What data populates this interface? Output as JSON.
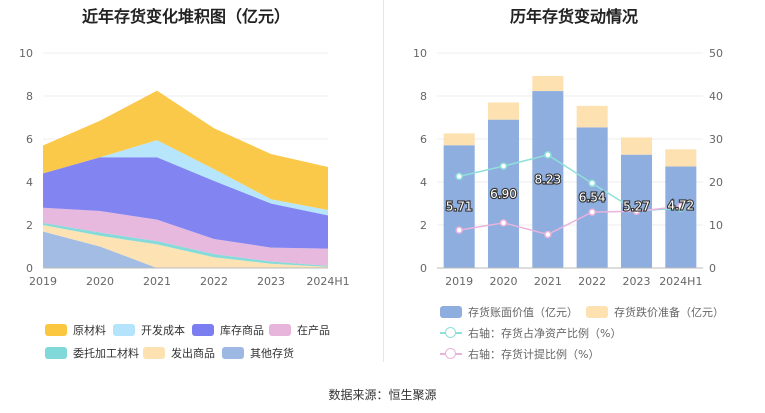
{
  "left_title": "近年存货变化堆积图（亿元）",
  "right_title": "历年存货变动情况",
  "source": "数据来源：恒生聚源",
  "colors": {
    "raw": "#fbc640",
    "dev": "#b3e4fb",
    "inventory": "#7b7ef0",
    "wip": "#e7b5dc",
    "consign": "#80d8d8",
    "shipped": "#fde1b0",
    "other": "#9db8e3",
    "bar_book": "#8eaedf",
    "bar_reserve": "#fde1b0",
    "line_assets": "#8fe0da",
    "line_reserve": "#e8b4dc"
  },
  "chart_data": [
    {
      "type": "area",
      "title": "近年存货变化堆积图（亿元）",
      "categories": [
        "2019",
        "2020",
        "2021",
        "2022",
        "2023",
        "2024H1"
      ],
      "ylim": [
        0,
        10
      ],
      "yticks": [
        0,
        2,
        4,
        6,
        8,
        10
      ],
      "stacked": true,
      "series": [
        {
          "name": "其他存货",
          "color_key": "other",
          "values": [
            1.7,
            1.0,
            0.0,
            0.0,
            0.0,
            0.0
          ]
        },
        {
          "name": "发出商品",
          "color_key": "shipped",
          "values": [
            0.3,
            0.5,
            1.1,
            0.5,
            0.2,
            0.05
          ]
        },
        {
          "name": "委托加工材料",
          "color_key": "consign",
          "values": [
            0.1,
            0.15,
            0.15,
            0.15,
            0.1,
            0.05
          ]
        },
        {
          "name": "在产品",
          "color_key": "wip",
          "values": [
            0.7,
            1.0,
            1.0,
            0.7,
            0.65,
            0.8
          ]
        },
        {
          "name": "库存商品",
          "color_key": "inventory",
          "values": [
            1.6,
            2.5,
            2.9,
            2.7,
            2.05,
            1.55
          ]
        },
        {
          "name": "开发成本",
          "color_key": "dev",
          "values": [
            0.0,
            0.0,
            0.8,
            0.55,
            0.2,
            0.25
          ]
        },
        {
          "name": "原材料",
          "color_key": "raw",
          "values": [
            1.3,
            1.7,
            2.3,
            1.9,
            2.1,
            2.0
          ]
        }
      ],
      "legend": {
        "position": "bottom",
        "order": [
          "原材料",
          "开发成本",
          "库存商品",
          "在产品",
          "委托加工材料",
          "发出商品",
          "其他存货"
        ]
      }
    },
    {
      "type": "bar",
      "title": "历年存货变动情况",
      "categories": [
        "2019",
        "2020",
        "2021",
        "2022",
        "2023",
        "2024H1"
      ],
      "ylim": [
        0,
        10
      ],
      "yticks": [
        0,
        2,
        4,
        6,
        8,
        10
      ],
      "y2lim": [
        0,
        50
      ],
      "y2ticks": [
        0,
        10,
        20,
        30,
        40,
        50
      ],
      "stacked": true,
      "series": [
        {
          "name": "存货账面价值（亿元）",
          "color_key": "bar_book",
          "values": [
            5.71,
            6.9,
            8.23,
            6.54,
            5.27,
            4.72
          ],
          "labels": [
            "5.71",
            "6.90",
            "8.23",
            "6.54",
            "5.27",
            "4.72"
          ]
        },
        {
          "name": "存货跌价准备（亿元）",
          "color_key": "bar_reserve",
          "values": [
            0.55,
            0.8,
            0.7,
            1.0,
            0.8,
            0.8
          ]
        }
      ],
      "lines": [
        {
          "name": "右轴：存货占净资产比例（%）",
          "color_key": "line_assets",
          "axis": "right",
          "values": [
            21.3,
            23.7,
            26.3,
            19.7,
            13.3,
            13.9
          ]
        },
        {
          "name": "右轴：存货计提比例（%）",
          "color_key": "line_reserve",
          "axis": "right",
          "values": [
            8.8,
            10.5,
            7.8,
            13.0,
            13.2,
            14.3
          ]
        }
      ],
      "legend": {
        "position": "bottom"
      }
    }
  ]
}
